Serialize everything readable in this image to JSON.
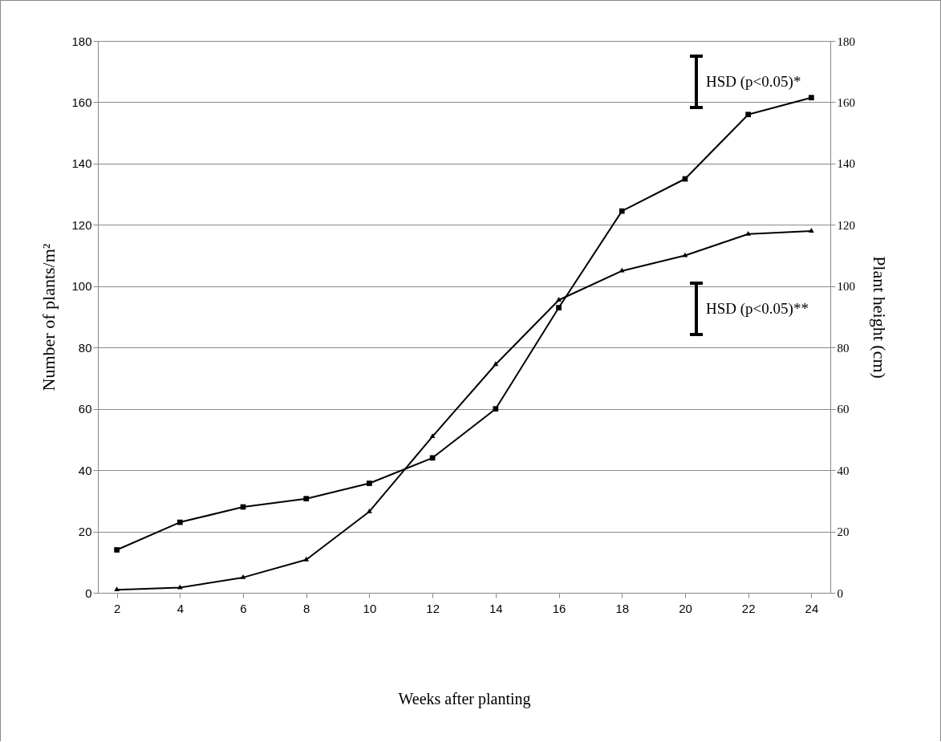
{
  "chart_data": {
    "type": "line",
    "xlabel": "Weeks after planting",
    "ylabel": "Number of plants/m²",
    "y2label": "Plant height (cm)",
    "x": [
      2,
      4,
      6,
      8,
      10,
      12,
      14,
      16,
      18,
      20,
      22,
      24
    ],
    "series": [
      {
        "color": "#000000",
        "marker": "triangle",
        "values": [
          1,
          1.7,
          5,
          10.8,
          26.5,
          51,
          74.5,
          95.5,
          105,
          110,
          117,
          118
        ]
      },
      {
        "color": "#000000",
        "marker": "square",
        "axis": "y2",
        "values": [
          14,
          23,
          28,
          30.7,
          35.7,
          44,
          60,
          93,
          124.5,
          135,
          156,
          161.5
        ]
      }
    ],
    "xlim": [
      1.4,
      24.6
    ],
    "xticks": [
      2,
      4,
      6,
      8,
      10,
      12,
      14,
      16,
      18,
      20,
      22,
      24
    ],
    "ylim": [
      0,
      180
    ],
    "yticks": [
      0,
      20,
      40,
      60,
      80,
      100,
      120,
      140,
      160,
      180
    ],
    "y2lim": [
      0,
      180
    ],
    "y2ticks": [
      0,
      20,
      40,
      60,
      80,
      100,
      120,
      140,
      160,
      180
    ],
    "grid": "y",
    "line_style": "solid",
    "annotations": [
      "HSD (p<0.05)*",
      "HSD (p<0.05)**"
    ]
  }
}
